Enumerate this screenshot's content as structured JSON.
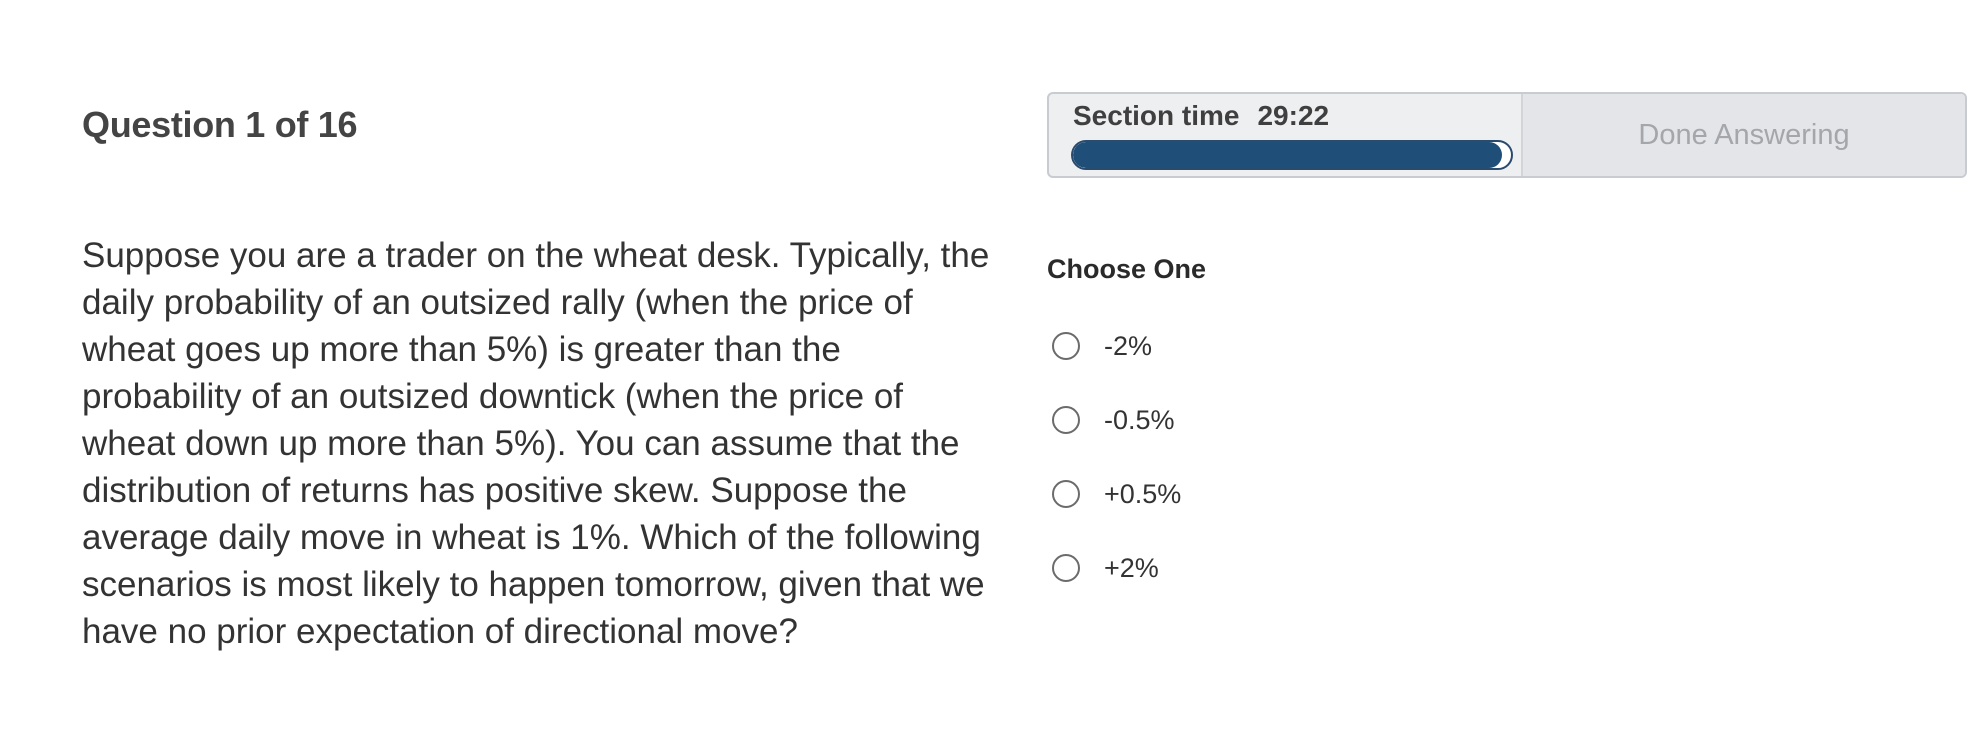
{
  "question": {
    "header": "Question 1 of 16",
    "text": "Suppose you are a trader on the wheat desk. Typically, the daily probability of an outsized rally (when the price of wheat goes up more than 5%) is greater than the probability of an outsized downtick (when the price of wheat down up more than 5%). You can assume that the distribution of returns has positive skew. Suppose the average daily move in wheat is 1%. Which of the following scenarios is most likely to happen tomorrow, given that we have no prior expectation of directional move?"
  },
  "timer": {
    "label": "Section time",
    "time": "29:22",
    "progress_fraction": 0.98,
    "progress_color": "#1f4e79"
  },
  "done_button": {
    "label": "Done Answering"
  },
  "answers": {
    "prompt": "Choose One",
    "options": [
      {
        "label": "-2%"
      },
      {
        "label": "-0.5%"
      },
      {
        "label": "+0.5%"
      },
      {
        "label": "+2%"
      }
    ]
  }
}
